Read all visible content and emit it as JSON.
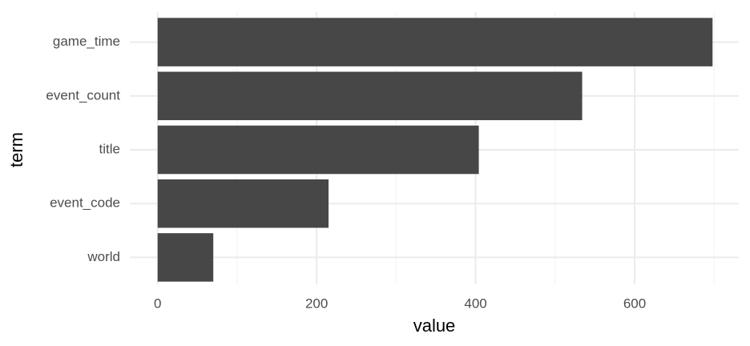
{
  "chart_data": {
    "type": "barh",
    "categories": [
      "game_time",
      "event_count",
      "title",
      "event_code",
      "world"
    ],
    "values": [
      698,
      534,
      404,
      215,
      70
    ],
    "color": "#474747",
    "xlabel": "value",
    "ylabel": "term",
    "xlim": [
      -35,
      731
    ],
    "xticks": [
      0,
      200,
      400,
      600
    ],
    "xminor": [
      100,
      300,
      500,
      700
    ],
    "grid": true
  }
}
